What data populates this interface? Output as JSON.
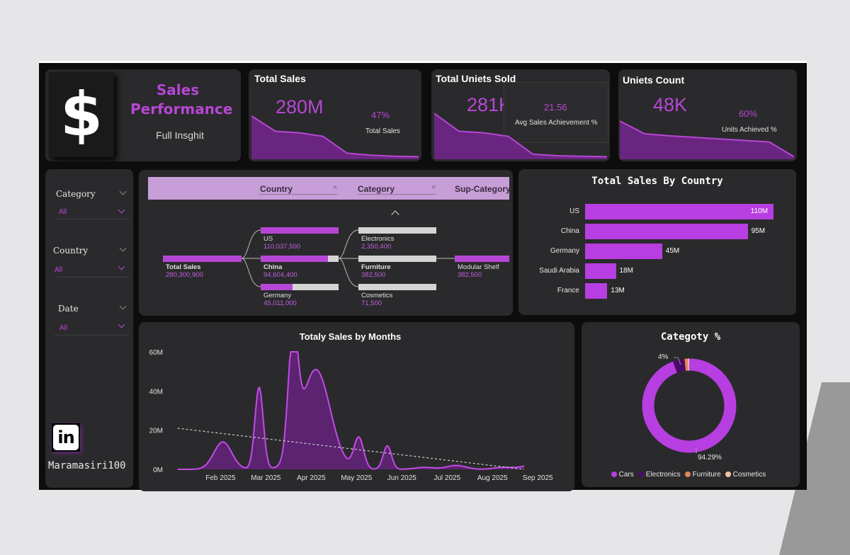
{
  "header": {
    "logo_symbol": "$",
    "title_line1": "Sales",
    "title_line2": "Performance",
    "subtitle": "Full Insghit"
  },
  "kpis": [
    {
      "title": "Total Sales",
      "value": "280M",
      "pct": "47%",
      "pct_label": "Total Sales",
      "trend": [
        0.85,
        0.55,
        0.52,
        0.45,
        0.12,
        0.08,
        0.06,
        0.05
      ]
    },
    {
      "title": "Total Uniets Sold",
      "value": "281K",
      "pct": "21.56",
      "pct_label": "Avg  Sales Achievement %",
      "trend": [
        0.9,
        0.55,
        0.52,
        0.45,
        0.1,
        0.07,
        0.06,
        0.05
      ]
    },
    {
      "title": "Uniets Count",
      "value": "48K",
      "pct": "60%",
      "pct_label": "Units Achieved %",
      "trend": [
        0.75,
        0.5,
        0.46,
        0.43,
        0.4,
        0.37,
        0.34,
        0.05
      ]
    }
  ],
  "slicers": [
    {
      "label": "Category",
      "value": "All"
    },
    {
      "label": "Country",
      "value": "All"
    },
    {
      "label": "Date",
      "value": "All"
    }
  ],
  "linkedin": {
    "icon_text": "in",
    "handle": "Maramasiri100"
  },
  "tree": {
    "headers": [
      "Country",
      "Category",
      "Sup-Category"
    ],
    "root": {
      "label": "Total Sales",
      "value": "280,300,900"
    },
    "countries": [
      {
        "label": "US",
        "value": "110,037,500",
        "fill": 1.0
      },
      {
        "label": "China",
        "value": "94,604,400",
        "fill": 0.86
      },
      {
        "label": "Germany",
        "value": "45,011,000",
        "fill": 0.41
      }
    ],
    "categories": [
      {
        "label": "Electronics",
        "value": "2,350,400",
        "fill": 0.0
      },
      {
        "label": "Furniture",
        "value": "382,500",
        "fill": 0.0
      },
      {
        "label": "Cosmetics",
        "value": "71,500",
        "fill": 0.0
      }
    ],
    "subcategory": {
      "label": "Modular Shelf",
      "value": "382,500",
      "fill": 1.0
    }
  },
  "country_chart": {
    "title": "Total Sales By Country",
    "chart_data": {
      "type": "bar",
      "categories": [
        "US",
        "China",
        "Germany",
        "Saudi Arabia",
        "France"
      ],
      "values": [
        110,
        95,
        45,
        18,
        13
      ],
      "labels": [
        "110M",
        "95M",
        "45M",
        "18M",
        "13M"
      ],
      "xlim": [
        0,
        120
      ]
    }
  },
  "months_chart": {
    "title": "Totaly Sales by Months",
    "y_ticks": [
      "60M",
      "40M",
      "20M",
      "0M"
    ],
    "x_ticks": [
      "Feb 2025",
      "Mar 2025",
      "Apr 2025",
      "May 2025",
      "Jun 2025",
      "Jul 2025",
      "Aug 2025",
      "Sep 2025"
    ],
    "chart_data": {
      "type": "area",
      "ylim": [
        0,
        60
      ],
      "trend_start": 21,
      "trend_end": 0,
      "peaks": [
        {
          "month": 0.15,
          "value": 14,
          "width": 0.28
        },
        {
          "month": 0.95,
          "value": 42,
          "width": 0.13
        },
        {
          "month": 1.7,
          "value": 59,
          "width": 0.15
        },
        {
          "month": 2.2,
          "value": 51,
          "width": 0.45
        },
        {
          "month": 3.15,
          "value": 16,
          "width": 0.15
        },
        {
          "month": 3.78,
          "value": 12,
          "width": 0.13
        },
        {
          "month": 4.6,
          "value": 1,
          "width": 0.3
        },
        {
          "month": 5.3,
          "value": 2,
          "width": 0.3
        },
        {
          "month": 6.35,
          "value": 1,
          "width": 0.3
        },
        {
          "month": 6.95,
          "value": 2,
          "width": 0.3
        }
      ]
    }
  },
  "donut": {
    "title": "Categoty %",
    "chart_data": {
      "type": "pie",
      "categories": [
        "Cars",
        "Electronics",
        "Furniture",
        "Cosmetics"
      ],
      "values": [
        94.29,
        4,
        1.1,
        0.61
      ],
      "colors": [
        "#b73ee0",
        "#4a0a66",
        "#e0875a",
        "#f2c2a8"
      ]
    },
    "label_small": "4%",
    "label_big": "94.29%"
  },
  "colors": {
    "accent": "#b647d6",
    "card": "#2a2a2c",
    "background": "#0d0d0d"
  }
}
